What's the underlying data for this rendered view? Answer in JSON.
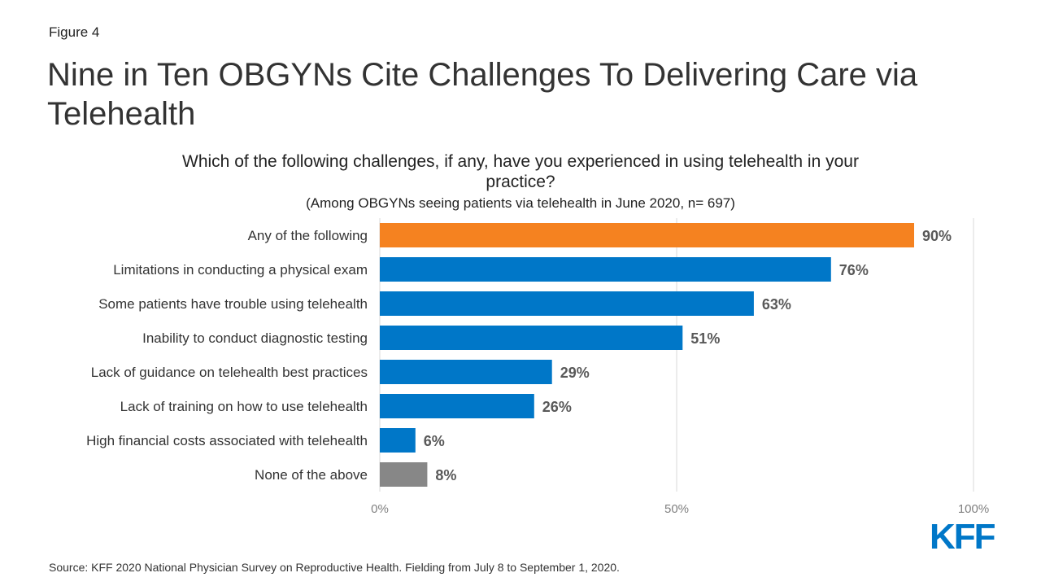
{
  "figure_label": "Figure 4",
  "title": "Nine in Ten OBGYNs Cite Challenges To Delivering Care via Telehealth",
  "question": "Which of the following challenges, if any, have you experienced in using telehealth in your practice?",
  "subnote": "(Among OBGYNs seeing patients via telehealth in June 2020, n= 697)",
  "source": "Source: KFF 2020 National Physician Survey on Reproductive Health. Fielding from July 8 to September 1, 2020.",
  "logo_text": "KFF",
  "colors": {
    "highlight": "#F58220",
    "primary": "#0077C8",
    "neutral": "#878787",
    "gridline": "#D9D9D9",
    "logo": "#0077C8"
  },
  "chart_data": {
    "type": "bar",
    "orientation": "horizontal",
    "categories": [
      "Any of the following",
      "Limitations in conducting a physical exam",
      "Some patients have trouble using telehealth",
      "Inability to conduct diagnostic testing",
      "Lack of guidance on telehealth best practices",
      "Lack of training on how to use telehealth",
      "High financial costs associated with telehealth",
      "None of the above"
    ],
    "values": [
      90,
      76,
      63,
      51,
      29,
      26,
      6,
      8
    ],
    "value_labels": [
      "90%",
      "76%",
      "63%",
      "51%",
      "29%",
      "26%",
      "6%",
      "8%"
    ],
    "bar_colors": [
      "highlight",
      "primary",
      "primary",
      "primary",
      "primary",
      "primary",
      "primary",
      "neutral"
    ],
    "xlim": [
      0,
      100
    ],
    "xticks": [
      0,
      50,
      100
    ],
    "xtick_labels": [
      "0%",
      "50%",
      "100%"
    ],
    "grid": true,
    "xlabel": "",
    "ylabel": ""
  }
}
